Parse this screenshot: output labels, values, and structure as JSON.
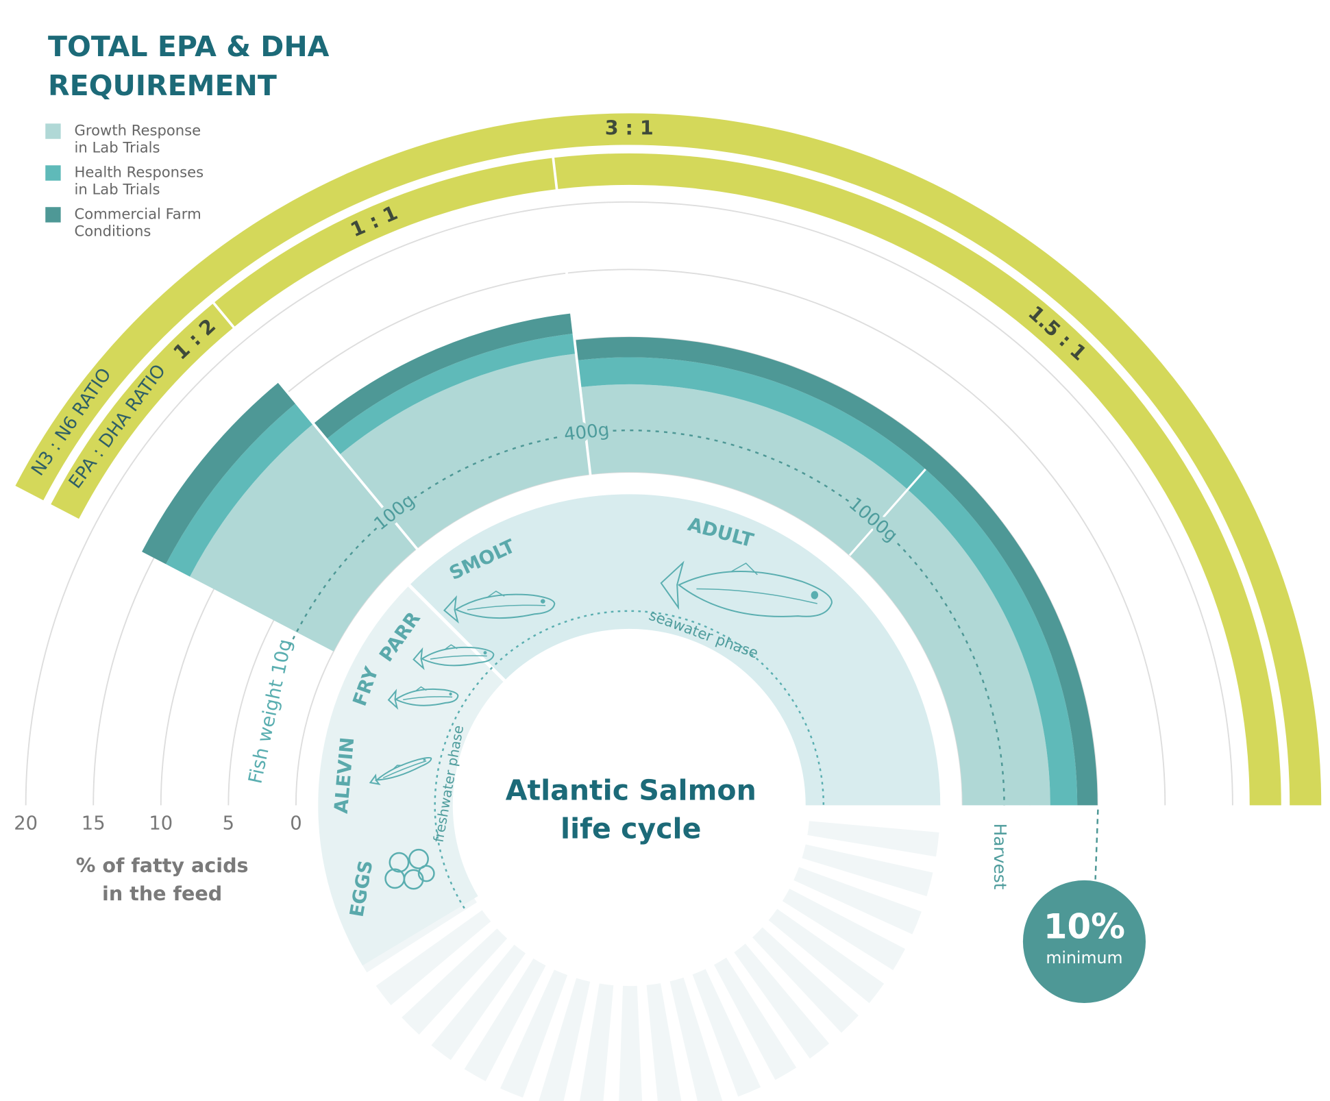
{
  "title_lines": [
    "TOTAL EPA & DHA",
    "REQUIREMENT"
  ],
  "legend": [
    {
      "label": [
        "Growth Response",
        "in Lab Trials"
      ],
      "color": "#b0d8d6"
    },
    {
      "label": [
        "Health Responses",
        "in Lab Trials"
      ],
      "color": "#5fbab9"
    },
    {
      "label": [
        "Commercial Farm",
        "Conditions"
      ],
      "color": "#4e9896"
    }
  ],
  "axis": {
    "ticks": [
      20,
      15,
      10,
      5,
      0
    ],
    "label": [
      "% of fatty acids",
      "in the feed"
    ]
  },
  "weights": {
    "label": "Fish weight 10g",
    "marks": [
      "100g",
      "400g",
      "1000g"
    ]
  },
  "segments": [
    [
      12,
      14,
      16
    ],
    [
      9,
      10.5,
      12
    ],
    [
      6.5,
      8.5,
      10
    ]
  ],
  "ratios": {
    "n3_n6": {
      "label": "N3 : N6 RATIO",
      "values": [
        "3 : 1"
      ]
    },
    "epa_dha": {
      "label": "EPA : DHA RATIO",
      "values": [
        "1 : 2",
        "1 : 1",
        "1.5 : 1"
      ]
    }
  },
  "life_cycle": {
    "title": [
      "Atlantic Salmon",
      "life cycle"
    ],
    "stages": [
      "EGGS",
      "ALEVIN",
      "FRY",
      "PARR",
      "SMOLT",
      "ADULT"
    ],
    "phases": [
      "freshwater phase",
      "seawater phase"
    ]
  },
  "harvest": "Harvest",
  "minimum": {
    "value": "10%",
    "label": "minimum"
  }
}
